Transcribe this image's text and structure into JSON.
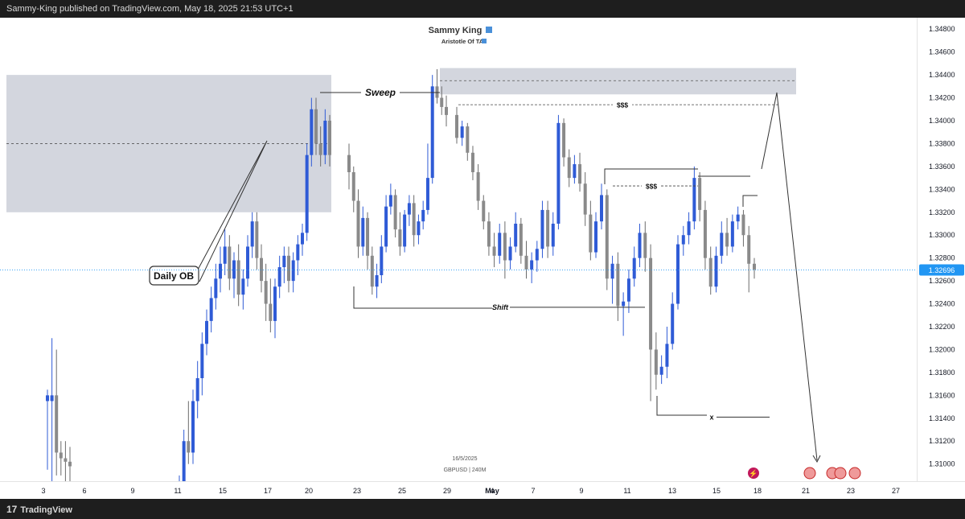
{
  "header": {
    "published": "Sammy-King published on TradingView.com, May 18, 2025 21:53 UTC+1"
  },
  "watermark": {
    "author": "Sammy King",
    "subtitle": "Aristotle Of TA",
    "date": "16/5/2025",
    "symbol": "GBPUSD",
    "interval": "240M",
    "symbol_sep": "|"
  },
  "footer": {
    "brand": "TradingView",
    "brand_mark": "17"
  },
  "colors": {
    "bull": "#2f5bd6",
    "bear": "#8a8a8a",
    "zone": "#d1d4dc",
    "price_label": "#2196f3",
    "arrow": "#333333"
  },
  "annotations": {
    "daily_ob": "Daily OB",
    "sweep": "Sweep",
    "liquidity_1": "$$$",
    "liquidity_2": "$$$",
    "shift": "Shift",
    "target": "x"
  },
  "chart_data": {
    "type": "candlestick",
    "symbol": "GBPUSD",
    "interval": "240M",
    "current_price": "1.32696",
    "y_ticks": [
      "1.34800",
      "1.34600",
      "1.34400",
      "1.34200",
      "1.34000",
      "1.33800",
      "1.33600",
      "1.33400",
      "1.33200",
      "1.33000",
      "1.32800",
      "1.32600",
      "1.32400",
      "1.32200",
      "1.32000",
      "1.31800",
      "1.31600",
      "1.31400",
      "1.31200",
      "1.31000"
    ],
    "y_range": [
      1.3085,
      1.349
    ],
    "x_ticks": [
      "3",
      "6",
      "9",
      "11",
      "15",
      "17",
      "20",
      "23",
      "25",
      "29",
      "May",
      "4",
      "7",
      "9",
      "11",
      "13",
      "15",
      "18",
      "21",
      "23",
      "27"
    ],
    "levels": {
      "daily_ob_zone": [
        1.332,
        1.344
      ],
      "daily_ob_mid": 1.338,
      "supply_zone": [
        1.3423,
        1.3446
      ],
      "supply_mid": 1.3435,
      "liquidity_high": 1.3414,
      "liquidity_mid": 1.3343,
      "shift": 1.3237,
      "target": 1.3141
    },
    "candles": [
      [
        1.3155,
        1.3165,
        1.316,
        1.3095
      ],
      [
        1.3155,
        1.321,
        1.316,
        1.3085
      ],
      [
        1.316,
        1.32,
        1.311,
        1.309
      ],
      [
        1.311,
        1.312,
        1.3105,
        1.309
      ],
      [
        1.3105,
        1.312,
        1.3102,
        1.3085
      ],
      [
        1.3102,
        1.3115,
        1.3098,
        1.3085
      ],
      [
        1.306,
        1.309,
        1.308,
        1.305
      ],
      [
        1.308,
        1.313,
        1.312,
        1.307
      ],
      [
        1.312,
        1.3155,
        1.311,
        1.31
      ],
      [
        1.311,
        1.3165,
        1.3155,
        1.31
      ],
      [
        1.3155,
        1.319,
        1.3175,
        1.314
      ],
      [
        1.3175,
        1.3215,
        1.3205,
        1.316
      ],
      [
        1.3205,
        1.3235,
        1.3225,
        1.3195
      ],
      [
        1.3225,
        1.3255,
        1.3245,
        1.3215
      ],
      [
        1.3245,
        1.3275,
        1.3262,
        1.3235
      ],
      [
        1.3262,
        1.329,
        1.3275,
        1.325
      ],
      [
        1.3275,
        1.3305,
        1.329,
        1.3265
      ],
      [
        1.329,
        1.33,
        1.3262,
        1.3252
      ],
      [
        1.3262,
        1.3285,
        1.3278,
        1.3245
      ],
      [
        1.3278,
        1.3292,
        1.3248,
        1.3238
      ],
      [
        1.3248,
        1.327,
        1.3262,
        1.3235
      ],
      [
        1.3262,
        1.33,
        1.329,
        1.3255
      ],
      [
        1.329,
        1.332,
        1.3312,
        1.328
      ],
      [
        1.3312,
        1.332,
        1.328,
        1.327
      ],
      [
        1.328,
        1.3292,
        1.326,
        1.325
      ],
      [
        1.326,
        1.3275,
        1.324,
        1.3225
      ],
      [
        1.324,
        1.3262,
        1.3225,
        1.3215
      ],
      [
        1.3225,
        1.3262,
        1.3255,
        1.321
      ],
      [
        1.3255,
        1.3282,
        1.3272,
        1.3245
      ],
      [
        1.3272,
        1.329,
        1.3282,
        1.3258
      ],
      [
        1.3282,
        1.329,
        1.326,
        1.325
      ],
      [
        1.326,
        1.3285,
        1.3278,
        1.325
      ],
      [
        1.3278,
        1.33,
        1.3292,
        1.3265
      ],
      [
        1.3292,
        1.331,
        1.3302,
        1.3282
      ],
      [
        1.3302,
        1.338,
        1.337,
        1.3295
      ],
      [
        1.337,
        1.342,
        1.341,
        1.336
      ],
      [
        1.341,
        1.342,
        1.338,
        1.337
      ],
      [
        1.338,
        1.3395,
        1.337,
        1.336
      ],
      [
        1.337,
        1.341,
        1.34,
        1.3362
      ],
      [
        1.34,
        1.3405,
        1.337,
        1.336
      ],
      [
        1.337,
        1.338,
        1.3355,
        1.334
      ],
      [
        1.3355,
        1.336,
        1.333,
        1.332
      ],
      [
        1.333,
        1.334,
        1.329,
        1.328
      ],
      [
        1.329,
        1.3325,
        1.3315,
        1.3282
      ],
      [
        1.3315,
        1.332,
        1.3282,
        1.327
      ],
      [
        1.3282,
        1.329,
        1.3255,
        1.3248
      ],
      [
        1.3255,
        1.3275,
        1.3265,
        1.3245
      ],
      [
        1.3265,
        1.33,
        1.329,
        1.3258
      ],
      [
        1.329,
        1.3335,
        1.3325,
        1.3285
      ],
      [
        1.3325,
        1.3345,
        1.3335,
        1.3318
      ],
      [
        1.3335,
        1.334,
        1.3305,
        1.3298
      ],
      [
        1.3305,
        1.332,
        1.329,
        1.3282
      ],
      [
        1.329,
        1.3322,
        1.3318,
        1.3285
      ],
      [
        1.3318,
        1.3335,
        1.3328,
        1.3308
      ],
      [
        1.3328,
        1.3335,
        1.33,
        1.329
      ],
      [
        1.33,
        1.3318,
        1.3312,
        1.3292
      ],
      [
        1.3312,
        1.333,
        1.3322,
        1.3305
      ],
      [
        1.3322,
        1.338,
        1.335,
        1.3318
      ],
      [
        1.335,
        1.344,
        1.343,
        1.3345
      ],
      [
        1.343,
        1.3445,
        1.342,
        1.3415
      ],
      [
        1.342,
        1.343,
        1.3412,
        1.3405
      ],
      [
        1.3412,
        1.3422,
        1.3405,
        1.3395
      ],
      [
        1.3405,
        1.3412,
        1.3385,
        1.338
      ],
      [
        1.3385,
        1.34,
        1.3395,
        1.3378
      ],
      [
        1.3395,
        1.3398,
        1.3372,
        1.3365
      ],
      [
        1.3372,
        1.3378,
        1.3355,
        1.3348
      ],
      [
        1.3355,
        1.3362,
        1.333,
        1.3322
      ],
      [
        1.333,
        1.3335,
        1.3312,
        1.3305
      ],
      [
        1.3312,
        1.332,
        1.329,
        1.3282
      ],
      [
        1.329,
        1.3302,
        1.3282,
        1.3272
      ],
      [
        1.3282,
        1.331,
        1.3302,
        1.3275
      ],
      [
        1.3302,
        1.3312,
        1.3278,
        1.3262
      ],
      [
        1.3278,
        1.3298,
        1.329,
        1.327
      ],
      [
        1.329,
        1.332,
        1.331,
        1.3285
      ],
      [
        1.331,
        1.3315,
        1.3282,
        1.3275
      ],
      [
        1.3282,
        1.3295,
        1.327,
        1.3262
      ],
      [
        1.327,
        1.3285,
        1.3278,
        1.3258
      ],
      [
        1.3278,
        1.3295,
        1.3288,
        1.3268
      ],
      [
        1.3288,
        1.333,
        1.3322,
        1.328
      ],
      [
        1.3322,
        1.333,
        1.329,
        1.328
      ],
      [
        1.329,
        1.332,
        1.331,
        1.3282
      ],
      [
        1.331,
        1.3405,
        1.3398,
        1.3305
      ],
      [
        1.3398,
        1.3402,
        1.3368,
        1.336
      ],
      [
        1.3368,
        1.3375,
        1.335,
        1.3342
      ],
      [
        1.335,
        1.337,
        1.3362,
        1.3345
      ],
      [
        1.3362,
        1.3372,
        1.3345,
        1.3338
      ],
      [
        1.3345,
        1.3355,
        1.3318,
        1.3308
      ],
      [
        1.3318,
        1.333,
        1.3285,
        1.3278
      ],
      [
        1.3285,
        1.332,
        1.3312,
        1.328
      ],
      [
        1.3312,
        1.3345,
        1.3335,
        1.3305
      ],
      [
        1.3335,
        1.334,
        1.3262,
        1.3252
      ],
      [
        1.3262,
        1.3282,
        1.3275,
        1.324
      ],
      [
        1.3275,
        1.3285,
        1.3238,
        1.3225
      ],
      [
        1.3238,
        1.325,
        1.3242,
        1.3212
      ],
      [
        1.3242,
        1.327,
        1.3262,
        1.3232
      ],
      [
        1.3262,
        1.329,
        1.328,
        1.3255
      ],
      [
        1.328,
        1.331,
        1.3302,
        1.3272
      ],
      [
        1.3302,
        1.3312,
        1.328,
        1.3268
      ],
      [
        1.328,
        1.3292,
        1.32,
        1.3155
      ],
      [
        1.32,
        1.3215,
        1.3178,
        1.3165
      ],
      [
        1.3178,
        1.3195,
        1.3185,
        1.317
      ],
      [
        1.3185,
        1.322,
        1.3205,
        1.3175
      ],
      [
        1.3205,
        1.325,
        1.324,
        1.32
      ],
      [
        1.324,
        1.33,
        1.3292,
        1.3235
      ],
      [
        1.3292,
        1.3308,
        1.33,
        1.3282
      ],
      [
        1.33,
        1.332,
        1.3312,
        1.3292
      ],
      [
        1.3312,
        1.336,
        1.335,
        1.3305
      ],
      [
        1.335,
        1.3355,
        1.3322,
        1.3312
      ],
      [
        1.3322,
        1.333,
        1.328,
        1.327
      ],
      [
        1.328,
        1.329,
        1.3255,
        1.3248
      ],
      [
        1.3255,
        1.329,
        1.3282,
        1.325
      ],
      [
        1.3282,
        1.3312,
        1.3302,
        1.3275
      ],
      [
        1.3302,
        1.3315,
        1.329,
        1.3282
      ],
      [
        1.329,
        1.3318,
        1.3312,
        1.3285
      ],
      [
        1.3312,
        1.3325,
        1.3318,
        1.3305
      ],
      [
        1.3318,
        1.3322,
        1.33,
        1.329
      ],
      [
        1.33,
        1.3308,
        1.3275,
        1.325
      ],
      [
        1.3275,
        1.328,
        1.327,
        1.3262
      ]
    ]
  }
}
